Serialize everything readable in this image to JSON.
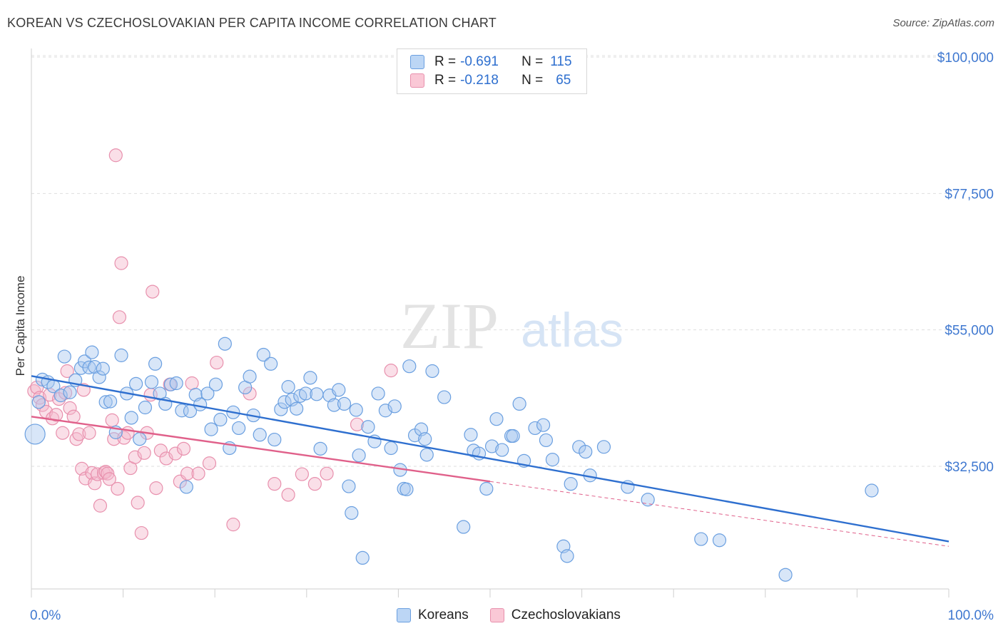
{
  "header": {
    "title": "KOREAN VS CZECHOSLOVAKIAN PER CAPITA INCOME CORRELATION CHART",
    "source": "Source: ZipAtlas.com"
  },
  "watermark": {
    "zip": "ZIP",
    "atlas": "atlas"
  },
  "legend": {
    "rows": [
      {
        "r_label": "R =",
        "r_value": "-0.691",
        "n_label": "N =",
        "n_value": "115",
        "color": "#a8c8f0"
      },
      {
        "r_label": "R =",
        "r_value": "-0.218",
        "n_label": "N =",
        "n_value": "65",
        "color": "#f5b8cb"
      }
    ]
  },
  "chart_data": {
    "type": "scatter",
    "xlabel": "",
    "ylabel": "Per Capita Income",
    "xlim": [
      0,
      100
    ],
    "ylim": [
      13000,
      103000
    ],
    "x_tick_labels": [
      "0.0%",
      "100.0%"
    ],
    "y_ticks": [
      32500,
      55000,
      77500,
      100000
    ],
    "y_tick_labels": [
      "$32,500",
      "$55,000",
      "$77,500",
      "$100,000"
    ],
    "grid": true,
    "legend_position": "top-center",
    "series": [
      {
        "name": "Koreans",
        "color": "#a8c8f0",
        "stroke": "#6a9fe0",
        "line_color": "#2e6fcf",
        "trend": {
          "x": [
            0,
            100
          ],
          "y": [
            47400,
            20100
          ]
        },
        "points": [
          [
            0.4,
            37800
          ],
          [
            0.8,
            43100
          ],
          [
            1.2,
            46800
          ],
          [
            1.8,
            46400
          ],
          [
            2.4,
            45700
          ],
          [
            3.2,
            44200
          ],
          [
            3.6,
            50600
          ],
          [
            4.2,
            44700
          ],
          [
            4.8,
            46700
          ],
          [
            5.4,
            48700
          ],
          [
            5.8,
            49800
          ],
          [
            6.3,
            48800
          ],
          [
            6.6,
            51300
          ],
          [
            6.9,
            48900
          ],
          [
            7.4,
            47200
          ],
          [
            7.8,
            48600
          ],
          [
            8.1,
            43100
          ],
          [
            8.6,
            43200
          ],
          [
            9.2,
            38100
          ],
          [
            9.8,
            50800
          ],
          [
            10.4,
            44500
          ],
          [
            10.9,
            40500
          ],
          [
            11.4,
            46100
          ],
          [
            11.8,
            37000
          ],
          [
            12.4,
            42200
          ],
          [
            13.1,
            46400
          ],
          [
            13.5,
            49400
          ],
          [
            14.0,
            44500
          ],
          [
            14.6,
            42800
          ],
          [
            15.2,
            46000
          ],
          [
            15.8,
            46200
          ],
          [
            16.4,
            41700
          ],
          [
            16.9,
            29100
          ],
          [
            17.3,
            41600
          ],
          [
            17.9,
            44300
          ],
          [
            18.4,
            42700
          ],
          [
            19.2,
            44500
          ],
          [
            19.6,
            38600
          ],
          [
            20.1,
            46000
          ],
          [
            20.6,
            40200
          ],
          [
            21.1,
            52700
          ],
          [
            21.6,
            35500
          ],
          [
            22.0,
            41400
          ],
          [
            22.6,
            38800
          ],
          [
            23.3,
            45500
          ],
          [
            23.8,
            47300
          ],
          [
            24.2,
            40900
          ],
          [
            24.9,
            37700
          ],
          [
            25.3,
            50900
          ],
          [
            26.1,
            49400
          ],
          [
            26.5,
            36900
          ],
          [
            27.2,
            41900
          ],
          [
            27.6,
            43100
          ],
          [
            28.0,
            45600
          ],
          [
            28.4,
            43500
          ],
          [
            28.9,
            42000
          ],
          [
            29.3,
            44100
          ],
          [
            29.9,
            44500
          ],
          [
            30.4,
            47100
          ],
          [
            31.1,
            44400
          ],
          [
            31.5,
            35400
          ],
          [
            32.5,
            44200
          ],
          [
            33.0,
            42600
          ],
          [
            33.5,
            45100
          ],
          [
            34.1,
            42800
          ],
          [
            34.6,
            29200
          ],
          [
            34.9,
            24800
          ],
          [
            35.4,
            41800
          ],
          [
            35.7,
            34300
          ],
          [
            36.1,
            17400
          ],
          [
            36.7,
            39000
          ],
          [
            37.4,
            36600
          ],
          [
            37.8,
            44500
          ],
          [
            38.6,
            41700
          ],
          [
            39.2,
            35500
          ],
          [
            39.6,
            42400
          ],
          [
            40.2,
            31900
          ],
          [
            40.6,
            28800
          ],
          [
            40.9,
            28700
          ],
          [
            41.2,
            49000
          ],
          [
            41.8,
            37600
          ],
          [
            42.5,
            38600
          ],
          [
            42.9,
            37000
          ],
          [
            43.1,
            34400
          ],
          [
            43.7,
            48200
          ],
          [
            45.0,
            43900
          ],
          [
            47.1,
            22500
          ],
          [
            47.9,
            37700
          ],
          [
            48.2,
            35100
          ],
          [
            48.8,
            34600
          ],
          [
            49.6,
            28800
          ],
          [
            50.2,
            35800
          ],
          [
            50.7,
            40300
          ],
          [
            51.3,
            35200
          ],
          [
            52.3,
            37500
          ],
          [
            52.5,
            37500
          ],
          [
            53.2,
            42800
          ],
          [
            53.7,
            33400
          ],
          [
            54.9,
            38800
          ],
          [
            55.8,
            39300
          ],
          [
            56.1,
            36800
          ],
          [
            56.8,
            33600
          ],
          [
            58.0,
            19300
          ],
          [
            58.4,
            17700
          ],
          [
            58.8,
            29600
          ],
          [
            59.7,
            35700
          ],
          [
            60.4,
            34900
          ],
          [
            60.9,
            31000
          ],
          [
            62.4,
            35700
          ],
          [
            65.0,
            29100
          ],
          [
            67.2,
            27000
          ],
          [
            73.0,
            20500
          ],
          [
            75.0,
            20300
          ],
          [
            82.2,
            14600
          ],
          [
            91.6,
            28500
          ]
        ]
      },
      {
        "name": "Czechoslovakians",
        "color": "#f5b8cb",
        "stroke": "#e890ad",
        "line_color": "#e0608a",
        "trend": {
          "x": [
            0,
            50
          ],
          "y": [
            40700,
            30000
          ]
        },
        "trend_ext": {
          "x": [
            50,
            100
          ],
          "y": [
            30000,
            19300
          ]
        },
        "points": [
          [
            0.3,
            44900
          ],
          [
            0.6,
            45500
          ],
          [
            0.9,
            43800
          ],
          [
            1.2,
            42600
          ],
          [
            1.6,
            41500
          ],
          [
            2.0,
            44300
          ],
          [
            2.3,
            40400
          ],
          [
            2.7,
            41000
          ],
          [
            3.0,
            43600
          ],
          [
            3.4,
            38000
          ],
          [
            3.7,
            44600
          ],
          [
            3.9,
            48200
          ],
          [
            4.2,
            42100
          ],
          [
            4.6,
            40700
          ],
          [
            4.9,
            37000
          ],
          [
            5.2,
            37800
          ],
          [
            5.5,
            32100
          ],
          [
            5.7,
            45100
          ],
          [
            5.9,
            30500
          ],
          [
            6.3,
            38000
          ],
          [
            6.6,
            31400
          ],
          [
            6.9,
            29700
          ],
          [
            7.2,
            31200
          ],
          [
            7.5,
            26000
          ],
          [
            7.9,
            31400
          ],
          [
            8.1,
            31600
          ],
          [
            8.3,
            31300
          ],
          [
            8.5,
            30400
          ],
          [
            8.8,
            40100
          ],
          [
            9.0,
            37000
          ],
          [
            9.2,
            83800
          ],
          [
            9.4,
            28800
          ],
          [
            9.6,
            57100
          ],
          [
            9.8,
            66000
          ],
          [
            10.1,
            37200
          ],
          [
            10.5,
            38000
          ],
          [
            10.8,
            32200
          ],
          [
            11.3,
            34000
          ],
          [
            11.6,
            26500
          ],
          [
            12.0,
            21500
          ],
          [
            12.3,
            34700
          ],
          [
            12.6,
            38000
          ],
          [
            13.0,
            44300
          ],
          [
            13.2,
            61300
          ],
          [
            13.6,
            28900
          ],
          [
            14.1,
            35100
          ],
          [
            14.7,
            33800
          ],
          [
            15.1,
            46000
          ],
          [
            15.7,
            34600
          ],
          [
            16.2,
            30000
          ],
          [
            16.6,
            35400
          ],
          [
            17.0,
            31300
          ],
          [
            17.5,
            46200
          ],
          [
            18.2,
            31300
          ],
          [
            19.4,
            33000
          ],
          [
            20.2,
            49600
          ],
          [
            22.0,
            22900
          ],
          [
            23.8,
            44500
          ],
          [
            26.5,
            29600
          ],
          [
            28.0,
            27800
          ],
          [
            29.5,
            31200
          ],
          [
            30.9,
            29600
          ],
          [
            32.2,
            31300
          ],
          [
            35.5,
            39400
          ],
          [
            39.2,
            48300
          ]
        ]
      }
    ]
  }
}
